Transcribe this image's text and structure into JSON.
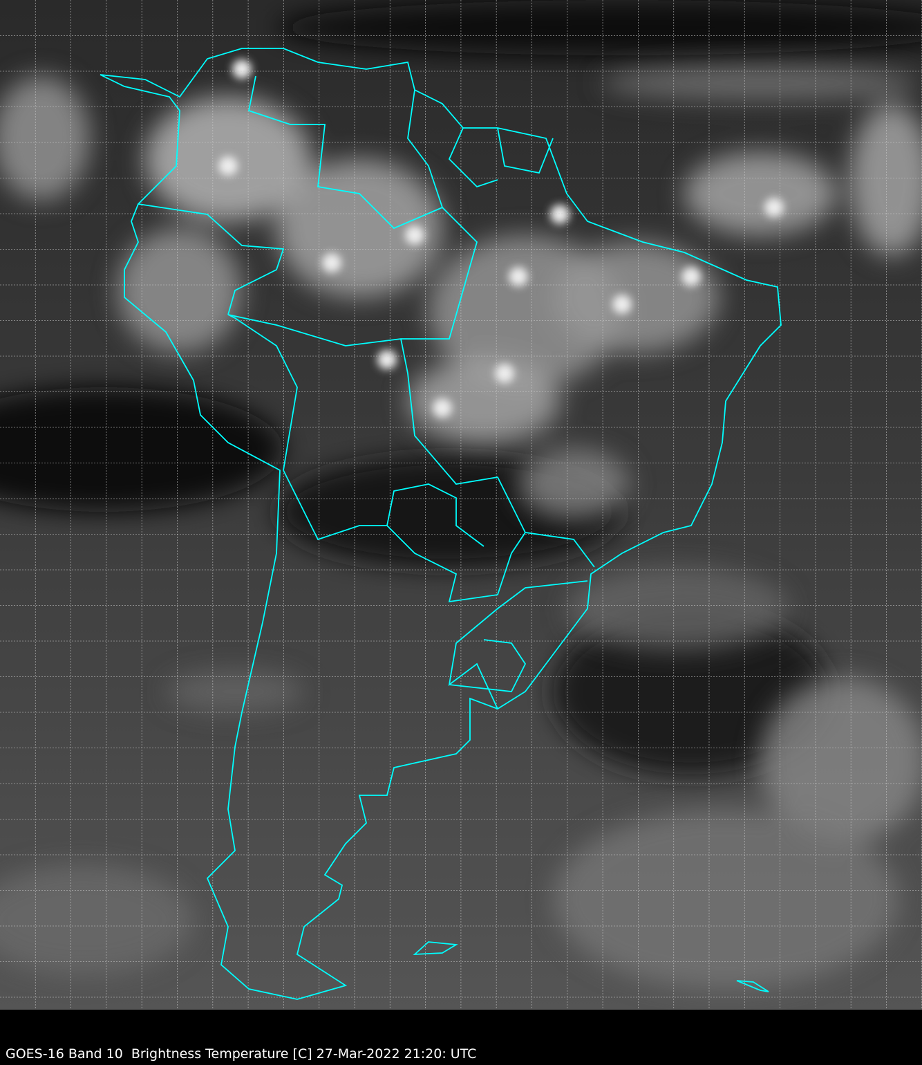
{
  "caption": "GOES-16 Band 10  Brightness Temperature [C] 27-Mar-2022 21:20: UTC",
  "map": {
    "imagery": "satellite infrared brightness temperature, grayscale",
    "border_color": "#00ffff",
    "grid_color": "#cccccc",
    "grid": "dashed lat/lon gridlines"
  }
}
